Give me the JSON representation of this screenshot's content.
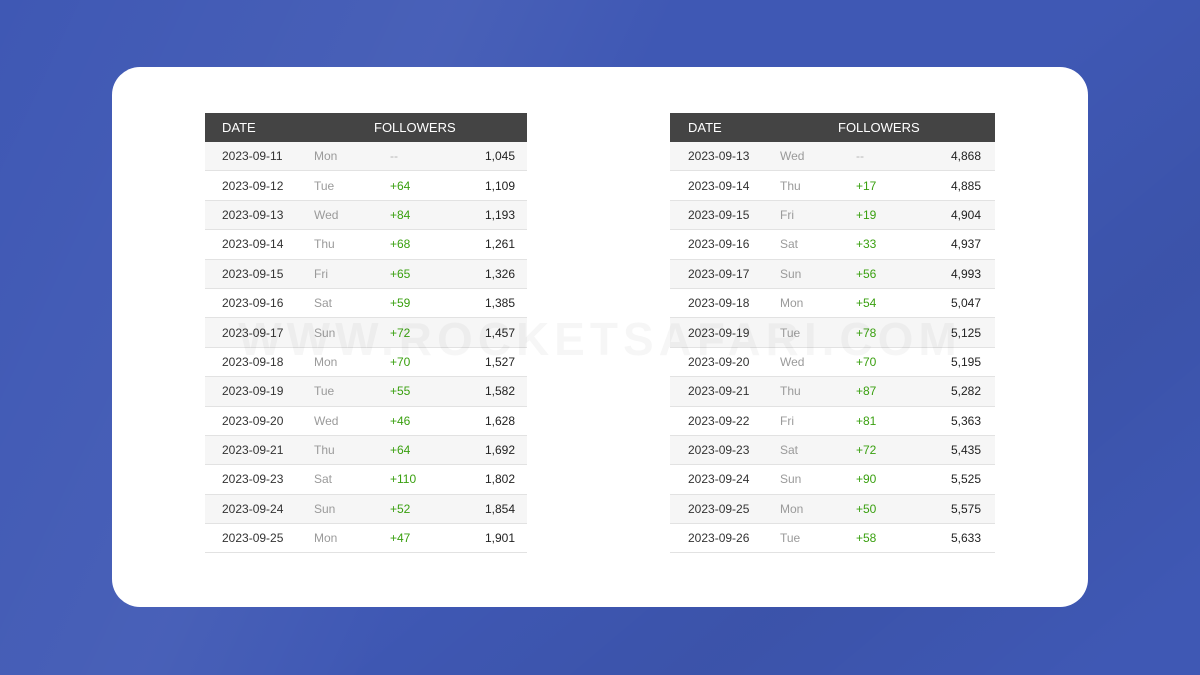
{
  "watermark": "WWW.ROCKETSAFARI.COM",
  "tables": [
    {
      "headers": {
        "date": "DATE",
        "followers": "FOLLOWERS"
      },
      "rows": [
        {
          "date": "2023-09-11",
          "day": "Mon",
          "change": "--",
          "total": "1,045"
        },
        {
          "date": "2023-09-12",
          "day": "Tue",
          "change": "+64",
          "total": "1,109"
        },
        {
          "date": "2023-09-13",
          "day": "Wed",
          "change": "+84",
          "total": "1,193"
        },
        {
          "date": "2023-09-14",
          "day": "Thu",
          "change": "+68",
          "total": "1,261"
        },
        {
          "date": "2023-09-15",
          "day": "Fri",
          "change": "+65",
          "total": "1,326"
        },
        {
          "date": "2023-09-16",
          "day": "Sat",
          "change": "+59",
          "total": "1,385"
        },
        {
          "date": "2023-09-17",
          "day": "Sun",
          "change": "+72",
          "total": "1,457"
        },
        {
          "date": "2023-09-18",
          "day": "Mon",
          "change": "+70",
          "total": "1,527"
        },
        {
          "date": "2023-09-19",
          "day": "Tue",
          "change": "+55",
          "total": "1,582"
        },
        {
          "date": "2023-09-20",
          "day": "Wed",
          "change": "+46",
          "total": "1,628"
        },
        {
          "date": "2023-09-21",
          "day": "Thu",
          "change": "+64",
          "total": "1,692"
        },
        {
          "date": "2023-09-23",
          "day": "Sat",
          "change": "+110",
          "total": "1,802"
        },
        {
          "date": "2023-09-24",
          "day": "Sun",
          "change": "+52",
          "total": "1,854"
        },
        {
          "date": "2023-09-25",
          "day": "Mon",
          "change": "+47",
          "total": "1,901"
        }
      ]
    },
    {
      "headers": {
        "date": "DATE",
        "followers": "FOLLOWERS"
      },
      "rows": [
        {
          "date": "2023-09-13",
          "day": "Wed",
          "change": "--",
          "total": "4,868"
        },
        {
          "date": "2023-09-14",
          "day": "Thu",
          "change": "+17",
          "total": "4,885"
        },
        {
          "date": "2023-09-15",
          "day": "Fri",
          "change": "+19",
          "total": "4,904"
        },
        {
          "date": "2023-09-16",
          "day": "Sat",
          "change": "+33",
          "total": "4,937"
        },
        {
          "date": "2023-09-17",
          "day": "Sun",
          "change": "+56",
          "total": "4,993"
        },
        {
          "date": "2023-09-18",
          "day": "Mon",
          "change": "+54",
          "total": "5,047"
        },
        {
          "date": "2023-09-19",
          "day": "Tue",
          "change": "+78",
          "total": "5,125"
        },
        {
          "date": "2023-09-20",
          "day": "Wed",
          "change": "+70",
          "total": "5,195"
        },
        {
          "date": "2023-09-21",
          "day": "Thu",
          "change": "+87",
          "total": "5,282"
        },
        {
          "date": "2023-09-22",
          "day": "Fri",
          "change": "+81",
          "total": "5,363"
        },
        {
          "date": "2023-09-23",
          "day": "Sat",
          "change": "+72",
          "total": "5,435"
        },
        {
          "date": "2023-09-24",
          "day": "Sun",
          "change": "+90",
          "total": "5,525"
        },
        {
          "date": "2023-09-25",
          "day": "Mon",
          "change": "+50",
          "total": "5,575"
        },
        {
          "date": "2023-09-26",
          "day": "Tue",
          "change": "+58",
          "total": "5,633"
        }
      ]
    }
  ],
  "colors": {
    "background": "#3f58b4",
    "header": "#444444",
    "positive_change": "#3aa010"
  }
}
